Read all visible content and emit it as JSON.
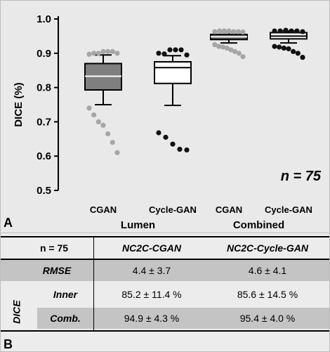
{
  "chart_data": {
    "type": "boxplot",
    "ylabel": "DICE (%)",
    "ylim": [
      0.5,
      1.0
    ],
    "yticks": [
      "0.5",
      "0.6",
      "0.7",
      "0.8",
      "0.9",
      "1.0"
    ],
    "yticks_values": [
      0.5,
      0.6,
      0.7,
      0.8,
      0.9,
      1.0
    ],
    "annotation": "n = 75",
    "groups": [
      "Lumen",
      "Combined"
    ],
    "series": [
      {
        "name": "CGAN",
        "group": "Lumen",
        "box_color": "#7f7f7f",
        "dot_color": "#a6a6a6",
        "whisker_low": 0.75,
        "q1": 0.793,
        "median": 0.833,
        "q3": 0.87,
        "whisker_high": 0.895,
        "outliers_low": [
          0.74,
          0.72,
          0.7,
          0.69,
          0.665,
          0.64,
          0.61
        ],
        "outliers_high": [
          0.897,
          0.9,
          0.9,
          0.905,
          0.905,
          0.905,
          0.9
        ]
      },
      {
        "name": "Cycle-GAN",
        "group": "Lumen",
        "box_color": "#ffffff",
        "dot_color": "#111111",
        "whisker_low": 0.748,
        "q1": 0.812,
        "median": 0.858,
        "q3": 0.875,
        "whisker_high": 0.893,
        "outliers_low": [
          0.668,
          0.655,
          0.635,
          0.62,
          0.618
        ],
        "outliers_high": [
          0.9,
          0.898,
          0.91,
          0.91,
          0.91,
          0.895
        ]
      },
      {
        "name": "CGAN",
        "group": "Combined",
        "box_color": "#5a5a5a",
        "dot_color": "#a6a6a6",
        "whisker_low": 0.93,
        "q1": 0.94,
        "median": 0.948,
        "q3": 0.955,
        "whisker_high": 0.962,
        "outliers_low": [
          0.925,
          0.92,
          0.918,
          0.915,
          0.91,
          0.905,
          0.9,
          0.89
        ],
        "outliers_high": [
          0.963,
          0.965,
          0.965,
          0.965,
          0.963,
          0.963,
          0.962
        ]
      },
      {
        "name": "Cycle-GAN",
        "group": "Combined",
        "box_color": "#ffffff",
        "dot_color": "#111111",
        "whisker_low": 0.93,
        "q1": 0.942,
        "median": 0.95,
        "q3": 0.96,
        "whisker_high": 0.965,
        "outliers_low": [
          0.92,
          0.918,
          0.915,
          0.913,
          0.905,
          0.9,
          0.888
        ],
        "outliers_high": [
          0.965,
          0.965,
          0.967,
          0.965,
          0.965,
          0.963
        ]
      }
    ]
  },
  "panels": {
    "a": "A",
    "b": "B"
  },
  "table": {
    "n_label": "n = 75",
    "col1": "NC2C-CGAN",
    "col2": "NC2C-Cycle-GAN",
    "rmse_label": "RMSE",
    "rmse_cgan": "4.4 ± 3.7",
    "rmse_cycle": "4.6 ± 4.1",
    "dice_label": "DICE",
    "inner_label": "Inner",
    "inner_cgan": "85.2  ± 11.4 %",
    "inner_cycle": "85.6  ± 14.5 %",
    "comb_label": "Comb.",
    "comb_cgan": "94.9  ± 4.3 %",
    "comb_cycle": "95.4  ± 4.0 %"
  }
}
